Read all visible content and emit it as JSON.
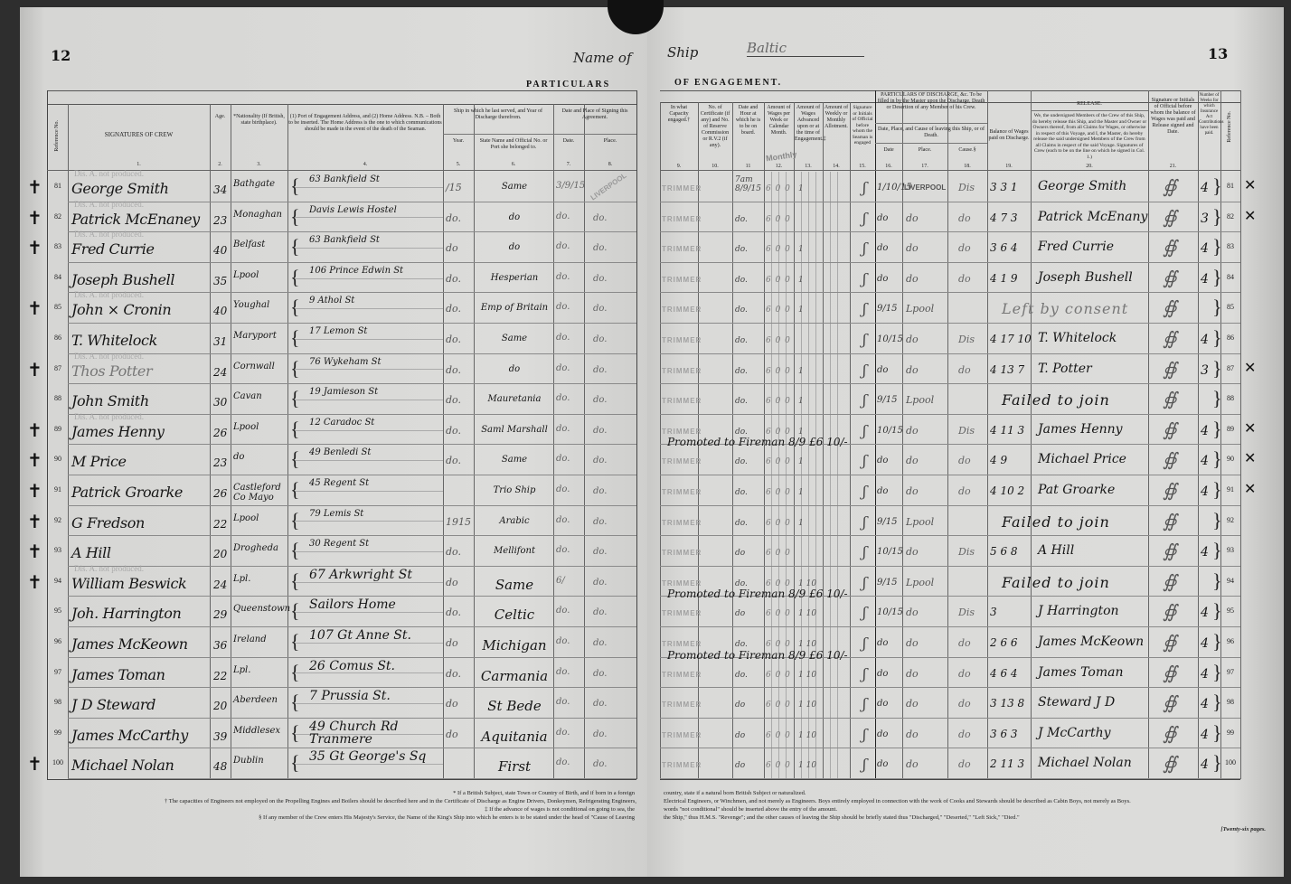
{
  "ship": {
    "label_left": "Name of",
    "label_right": "Ship",
    "name": "Baltic"
  },
  "left": {
    "page_number": "12",
    "band_title": "PARTICULARS",
    "headers": [
      {
        "text": "Reference No.",
        "num": ""
      },
      {
        "text": "SIGNATURES OF CREW",
        "num": "1."
      },
      {
        "text": "Age.",
        "num": "2."
      },
      {
        "text": "*Nationality (If British, state birthplace).",
        "num": "3."
      },
      {
        "text": "(1) Port of Engagement Address, and (2) Home Address. N.B. – Both to be inserted. The Home Address is the one to which communications should be made in the event of the death of the Seaman.",
        "num": "4."
      },
      {
        "text": "Year.",
        "num": "5."
      },
      {
        "text": "State Name and Official No. or Port she belonged to.",
        "num": "6."
      },
      {
        "text": "Date.",
        "num": "7."
      },
      {
        "text": "Place.",
        "num": "8."
      }
    ],
    "group_headers": {
      "last_ship": "Ship in which he last served, and Year of Discharge therefrom.",
      "signing": "Date and Place of Signing this Agreement."
    },
    "dis_a_note": "Dis. A. not produced.",
    "stamp": "LIVERPOOL",
    "rows": [
      {
        "ref": "81",
        "signature": "George Smith",
        "age": "34",
        "nationality": "Bathgate",
        "address": "63 Bankfield St",
        "year": "/15",
        "ship": "Same",
        "date": "3/9/15",
        "place": ""
      },
      {
        "ref": "82",
        "signature": "Patrick McEnaney",
        "age": "23",
        "nationality": "Monaghan",
        "address": "Davis Lewis Hostel",
        "year": "do.",
        "ship": "do",
        "date": "do.",
        "place": "do."
      },
      {
        "ref": "83",
        "signature": "Fred Currie",
        "age": "40",
        "nationality": "Belfast",
        "address": "63 Bankfield St",
        "year": "do",
        "ship": "do",
        "date": "do.",
        "place": "do."
      },
      {
        "ref": "84",
        "signature": "Joseph Bushell",
        "age": "35",
        "nationality": "Lpool",
        "address": "106 Prince Edwin St",
        "year": "do.",
        "ship": "Hesperian",
        "date": "do.",
        "place": "do."
      },
      {
        "ref": "85",
        "signature": "John × Cronin",
        "age": "40",
        "nationality": "Youghal",
        "address": "9 Athol St",
        "year": "do.",
        "ship": "Emp of Britain",
        "date": "do.",
        "place": "do."
      },
      {
        "ref": "86",
        "signature": "T. Whitelock",
        "age": "31",
        "nationality": "Maryport",
        "address": "17 Lemon St",
        "year": "do.",
        "ship": "Same",
        "date": "do.",
        "place": "do."
      },
      {
        "ref": "87",
        "signature": "Thos Potter",
        "age": "24",
        "nationality": "Cornwall",
        "address": "76 Wykeham St",
        "year": "do.",
        "ship": "do",
        "date": "do.",
        "place": "do."
      },
      {
        "ref": "88",
        "signature": "John Smith",
        "age": "30",
        "nationality": "Cavan",
        "address": "19 Jamieson St",
        "year": "do.",
        "ship": "Mauretania",
        "date": "do.",
        "place": "do."
      },
      {
        "ref": "89",
        "signature": "James Henny",
        "age": "26",
        "nationality": "Lpool",
        "address": "12 Caradoc St",
        "year": "do.",
        "ship": "Saml Marshall",
        "date": "do.",
        "place": "do."
      },
      {
        "ref": "90",
        "signature": "M Price",
        "age": "23",
        "nationality": "do",
        "address": "49 Benledi St",
        "year": "do.",
        "ship": "Same",
        "date": "do.",
        "place": "do."
      },
      {
        "ref": "91",
        "signature": "Patrick Groarke",
        "age": "26",
        "nationality": "Castleford Co Mayo",
        "address": "45 Regent St",
        "year": "",
        "ship": "Trio Ship",
        "date": "do.",
        "place": "do."
      },
      {
        "ref": "92",
        "signature": "G Fredson",
        "age": "22",
        "nationality": "Lpool",
        "address": "79 Lemis St",
        "year": "1915",
        "ship": "Arabic",
        "date": "do.",
        "place": "do."
      },
      {
        "ref": "93",
        "signature": "A Hill",
        "age": "20",
        "nationality": "Drogheda",
        "address": "30 Regent St",
        "year": "do.",
        "ship": "Mellifont",
        "date": "do.",
        "place": "do."
      },
      {
        "ref": "94",
        "signature": "William Beswick",
        "age": "24",
        "nationality": "Lpl.",
        "address": "67 Arkwright St",
        "year": "do",
        "ship": "Same",
        "date": "6/",
        "place": "do."
      },
      {
        "ref": "95",
        "signature": "Joh. Harrington",
        "age": "29",
        "nationality": "Queenstown",
        "address": "Sailors Home",
        "year": "do.",
        "ship": "Celtic",
        "date": "do.",
        "place": "do."
      },
      {
        "ref": "96",
        "signature": "James McKeown",
        "age": "36",
        "nationality": "Ireland",
        "address": "107 Gt Anne St.",
        "year": "do",
        "ship": "Michigan",
        "date": "do.",
        "place": "do."
      },
      {
        "ref": "97",
        "signature": "James Toman",
        "age": "22",
        "nationality": "Lpl.",
        "address": "26 Comus St.",
        "year": "do.",
        "ship": "Carmania",
        "date": "do.",
        "place": "do."
      },
      {
        "ref": "98",
        "signature": "J D Steward",
        "age": "20",
        "nationality": "Aberdeen",
        "address": "7 Prussia St.",
        "year": "do",
        "ship": "St Bede",
        "date": "do.",
        "place": "do."
      },
      {
        "ref": "99",
        "signature": "James McCarthy",
        "age": "39",
        "nationality": "Middlesex",
        "address": "49 Church Rd Tranmere",
        "year": "do",
        "ship": "Aquitania",
        "date": "do.",
        "place": "do."
      },
      {
        "ref": "100",
        "signature": "Michael Nolan",
        "age": "48",
        "nationality": "Dublin",
        "address": "35 Gt George's Sq",
        "year": "",
        "ship": "First",
        "date": "do.",
        "place": "do."
      }
    ],
    "footnotes": [
      "* If a British Subject, state Town or Country of Birth, and if born in a foreign",
      "† The capacities of Engineers not employed on the Propelling Engines and Boilers should be described here and in the Certificate of Discharge as Engine Drivers, Donkeymen, Refrigerating Engineers,",
      "‡ If the advance of wages is not conditional on going to sea, the",
      "§ If any member of the Crew enters His Majesty's Service, the Name of the King's Ship into which he enters is to be stated under the head of \"Cause of Leaving"
    ]
  },
  "right": {
    "page_number": "13",
    "band_title": "OF ENGAGEMENT.",
    "headers": [
      {
        "text": "In what Capacity engaged.†",
        "num": "9."
      },
      {
        "text": "No. of Certificate (if any) and No. of Reserve Commission or R.V.2 (if any).",
        "num": "10."
      },
      {
        "text": "Date and Hour at which he is to be on board.",
        "num": "11"
      },
      {
        "text": "Amount of Wages per Week or Calendar Month.",
        "num": "12."
      },
      {
        "text": "Amount of Wages Advanced upon or at the time of Engagement.‡",
        "num": "13."
      },
      {
        "text": "Amount of Weekly or Monthly Allotment.",
        "num": "14."
      },
      {
        "text": "Signature or Initials of Official before whom the Seaman is engaged",
        "num": "15."
      },
      {
        "text": "Date",
        "num": "16."
      },
      {
        "text": "Place.",
        "num": "17."
      },
      {
        "text": "Cause.§",
        "num": "18."
      },
      {
        "text": "Balance of Wages paid on Discharge.",
        "num": "19."
      },
      {
        "text": "We, the undersigned Members of the Crew of this Ship, do hereby release this Ship, and the Master and Owner or Owners thereof, from all Claims for Wages, or otherwise in respect of this Voyage, and I, the Master, do hereby release the said undersigned Members of the Crew from all Claims in respect of the said Voyage. Signatures of Crew (each to be on the line on which he signed in Col. 1.)",
        "num": "20."
      },
      {
        "text": "Signature or Initials of Official before whom the balance of Wages was paid and Release signed and Date.",
        "num": "21."
      },
      {
        "text": "Number of Weeks for which Insurance Act Contributions have been paid.",
        "num": ""
      },
      {
        "text": "Reference No.",
        "num": ""
      }
    ],
    "discharge_group": "PARTICULARS OF DISCHARGE, &c. To be filled in by the Master upon the Discharge, Death or Desertion of any Member of his Crew.",
    "discharge_sub": "Date, Place, and Cause of leaving this Ship, or of Death.",
    "release_title": "RELEASE.",
    "monthly_stamp": "Monthly",
    "rows": [
      {
        "capacity": "TRIMMER",
        "on_board": "7am 8/9/15",
        "wages": "6 0 0",
        "advance": "1",
        "d_date": "1/10/15",
        "d_place": "LIVERPOOL",
        "cause": "Dis",
        "balance": "3 3 1",
        "release": "George Smith",
        "weeks": "4",
        "ref": "81"
      },
      {
        "capacity": "TRIMMER",
        "on_board": "do.",
        "wages": "6 0 0",
        "advance": "",
        "d_date": "do",
        "d_place": "do",
        "cause": "do",
        "balance": "4 7 3",
        "release": "Patrick McEnany",
        "weeks": "3",
        "ref": "82"
      },
      {
        "capacity": "TRIMMER",
        "on_board": "do.",
        "wages": "6 0 0",
        "advance": "1",
        "d_date": "do",
        "d_place": "do",
        "cause": "do",
        "balance": "3 6 4",
        "release": "Fred Currie",
        "weeks": "4",
        "ref": "83"
      },
      {
        "capacity": "TRIMMER",
        "on_board": "do.",
        "wages": "6 0 0",
        "advance": "1",
        "d_date": "do",
        "d_place": "do",
        "cause": "do",
        "balance": "4 1 9",
        "release": "Joseph Bushell",
        "weeks": "4",
        "ref": "84"
      },
      {
        "capacity": "TRIMMER",
        "on_board": "do.",
        "wages": "6 0 0",
        "advance": "1",
        "d_date": "9/15",
        "d_place": "Lpool",
        "cause": "",
        "balance": "",
        "release": "Left by consent",
        "weeks": "",
        "ref": "85"
      },
      {
        "capacity": "TRIMMER",
        "on_board": "do.",
        "wages": "6 0 0",
        "advance": "",
        "d_date": "10/15",
        "d_place": "do",
        "cause": "Dis",
        "balance": "4 17 10",
        "release": "T. Whitelock",
        "weeks": "4",
        "ref": "86"
      },
      {
        "capacity": "TRIMMER",
        "on_board": "do.",
        "wages": "6 0 0",
        "advance": "1",
        "d_date": "do",
        "d_place": "do",
        "cause": "do",
        "balance": "4 13 7",
        "release": "T. Potter",
        "weeks": "3",
        "ref": "87"
      },
      {
        "capacity": "TRIMMER",
        "on_board": "do.",
        "wages": "6 0 0",
        "advance": "1",
        "d_date": "9/15",
        "d_place": "Lpool",
        "cause": "",
        "balance": "",
        "release": "Failed to join",
        "weeks": "",
        "ref": "88"
      },
      {
        "capacity": "TRIMMER",
        "on_board": "do.",
        "wages": "6 0 0",
        "advance": "1",
        "d_date": "10/15",
        "d_place": "do",
        "cause": "Dis",
        "balance": "4 11 3",
        "release": "James Henny",
        "weeks": "4",
        "ref": "89"
      },
      {
        "capacity": "TRIMMER",
        "on_board": "do.",
        "wages": "6 0 0",
        "advance": "1",
        "d_date": "do",
        "d_place": "do",
        "cause": "do",
        "balance": "4 9",
        "release": "Michael Price",
        "weeks": "4",
        "ref": "90"
      },
      {
        "capacity": "TRIMMER",
        "on_board": "do.",
        "wages": "6 0 0",
        "advance": "1",
        "d_date": "do",
        "d_place": "do",
        "cause": "do",
        "balance": "4 10 2",
        "release": "Pat Groarke",
        "weeks": "4",
        "ref": "91"
      },
      {
        "capacity": "TRIMMER",
        "on_board": "do.",
        "wages": "6 0 0",
        "advance": "1",
        "d_date": "9/15",
        "d_place": "Lpool",
        "cause": "",
        "balance": "",
        "release": "Failed to join",
        "weeks": "",
        "ref": "92"
      },
      {
        "capacity": "TRIMMER",
        "on_board": "do",
        "wages": "6 0 0",
        "advance": "",
        "d_date": "10/15",
        "d_place": "do",
        "cause": "Dis",
        "balance": "5 6 8",
        "release": "A Hill",
        "weeks": "4",
        "ref": "93"
      },
      {
        "capacity": "TRIMMER",
        "on_board": "do.",
        "wages": "6 0 0",
        "advance": "1 10",
        "d_date": "9/15",
        "d_place": "Lpool",
        "cause": "",
        "balance": "",
        "release": "Failed to join",
        "weeks": "",
        "ref": "94"
      },
      {
        "capacity": "TRIMMER",
        "on_board": "do",
        "wages": "6 0 0",
        "advance": "1 10",
        "d_date": "10/15",
        "d_place": "do",
        "cause": "Dis",
        "balance": "3",
        "release": "J Harrington",
        "weeks": "4",
        "ref": "95"
      },
      {
        "capacity": "TRIMMER",
        "on_board": "do.",
        "wages": "6 0 0",
        "advance": "1 10",
        "d_date": "do",
        "d_place": "do",
        "cause": "do",
        "balance": "2 6 6",
        "release": "James McKeown",
        "weeks": "4",
        "ref": "96"
      },
      {
        "capacity": "TRIMMER",
        "on_board": "do.",
        "wages": "6 0 0",
        "advance": "1 10",
        "d_date": "do",
        "d_place": "do",
        "cause": "do",
        "balance": "4 6 4",
        "release": "James Toman",
        "weeks": "4",
        "ref": "97"
      },
      {
        "capacity": "TRIMMER",
        "on_board": "do",
        "wages": "6 0 0",
        "advance": "1 10",
        "d_date": "do",
        "d_place": "do",
        "cause": "do",
        "balance": "3 13 8",
        "release": "Steward J D",
        "weeks": "4",
        "ref": "98"
      },
      {
        "capacity": "TRIMMER",
        "on_board": "do",
        "wages": "6 0 0",
        "advance": "1 10",
        "d_date": "do",
        "d_place": "do",
        "cause": "do",
        "balance": "3 6 3",
        "release": "J McCarthy",
        "weeks": "4",
        "ref": "99"
      },
      {
        "capacity": "TRIMMER",
        "on_board": "do",
        "wages": "6 0 0",
        "advance": "1 10",
        "d_date": "do",
        "d_place": "do",
        "cause": "do",
        "balance": "2 11 3",
        "release": "Michael Nolan",
        "weeks": "4",
        "ref": "100"
      }
    ],
    "promotions": [
      {
        "row": 9,
        "text": "Promoted to Fireman 8/9 £6 10/-"
      },
      {
        "row": 14,
        "text": "Promoted to Fireman 8/9 £6 10/-"
      },
      {
        "row": 16,
        "text": "Promoted to Fireman 8/9 £6 10/-"
      }
    ],
    "footnotes": [
      "country, state if a natural born British Subject or naturalized.",
      "Electrical Engineers, or Winchmen, and not merely as Engineers.   Boys entirely employed in connection with the work of Cooks and Stewards should be described as Cabin Boys, not merely as Boys.",
      "words \"not conditional\" should be inserted above the entry of the amount.",
      "the Ship,\" thus H.M.S. \"Revenge\"; and the other causes of leaving the Ship should be briefly stated thus \"Discharged,\" \"Deserted,\" \"Left Sick,\" \"Died.\""
    ],
    "pages_note": "[Twenty-six pages."
  }
}
